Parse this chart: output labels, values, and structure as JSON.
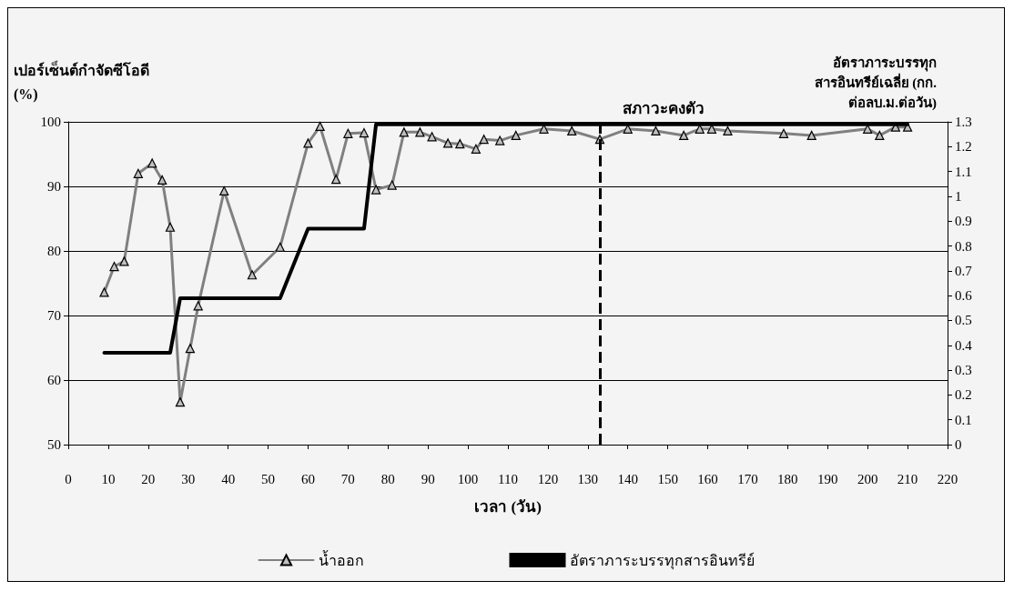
{
  "chart_data": {
    "type": "line",
    "xlabel": "เวลา (วัน)",
    "ylabel": "เปอร์เซ็นต์กำจัดซีโอดี\n(%)",
    "y2label": "อัตราภาระบรรทุก\nสารอินทรีย์เฉลี่ย (กก.\nต่อลบ.ม.ต่อวัน)",
    "xlim": [
      0,
      220
    ],
    "xticks": [
      0,
      10,
      20,
      30,
      40,
      50,
      60,
      70,
      80,
      90,
      100,
      110,
      120,
      130,
      140,
      150,
      160,
      170,
      180,
      190,
      200,
      210,
      220
    ],
    "ylim": [
      50,
      100
    ],
    "yticks": [
      50,
      60,
      70,
      80,
      90,
      100
    ],
    "y2lim": [
      0,
      1.3
    ],
    "y2ticks": [
      0,
      0.1,
      0.2,
      0.3,
      0.4,
      0.5,
      0.6,
      0.7,
      0.8,
      0.9,
      1,
      1.1,
      1.2,
      1.3
    ],
    "grid": "y",
    "legend": "bottom",
    "ref_lines": [
      {
        "axis": "x",
        "value": 133,
        "label": "สภาวะคงตัว",
        "color": "#000000",
        "line_style": "dashed"
      }
    ],
    "series": [
      {
        "name": "น้ำออก",
        "color": "#808080",
        "marker": "triangle",
        "x": [
          9,
          11.5,
          14,
          17.5,
          21,
          23.5,
          25.5,
          28,
          30.5,
          32.5,
          39,
          46,
          53,
          60,
          63,
          67,
          70,
          74,
          77,
          81,
          84,
          88,
          91,
          95,
          98,
          102,
          104,
          108,
          112,
          119,
          126,
          133,
          140,
          147,
          154,
          158,
          161,
          165,
          179,
          186,
          200,
          203,
          207,
          210
        ],
        "values": [
          73.6,
          77.6,
          78.4,
          92,
          93.6,
          91,
          83.7,
          56.6,
          64.9,
          71.5,
          89.3,
          76.3,
          80.6,
          96.7,
          99.3,
          91.1,
          98.2,
          98.3,
          89.5,
          90.2,
          98.4,
          98.4,
          97.7,
          96.7,
          96.6,
          95.8,
          97.3,
          97.1,
          97.9,
          98.9,
          98.6,
          97.3,
          98.9,
          98.6,
          97.9,
          98.9,
          98.9,
          98.6,
          98.2,
          97.9,
          98.9,
          97.9,
          99.2,
          99.2
        ]
      },
      {
        "name": "อัตราภาระบรรทุกสารอินทรีย์",
        "color": "#000000",
        "marker": "none",
        "axis": "y2",
        "x": [
          9,
          25.5,
          28,
          53,
          60,
          74,
          77,
          210
        ],
        "values": [
          0.37,
          0.37,
          0.59,
          0.59,
          0.87,
          0.87,
          1.29,
          1.29
        ]
      }
    ]
  }
}
